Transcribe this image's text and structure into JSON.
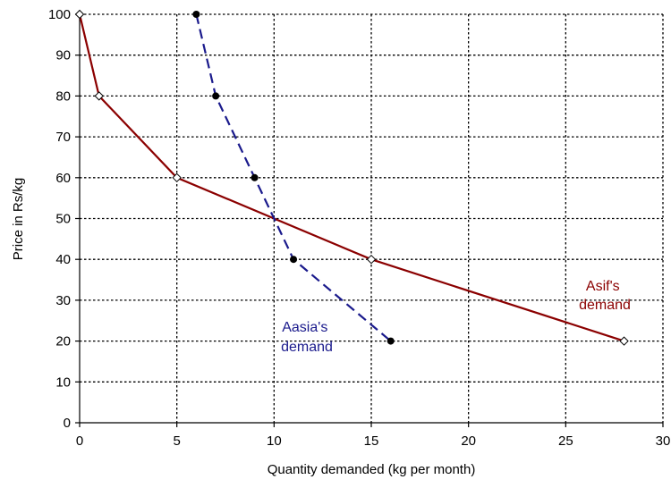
{
  "chart_data": {
    "type": "line",
    "title": "",
    "xlabel": "Quantity demanded (kg per month)",
    "ylabel": "Price in Rs/kg",
    "xlim": [
      0,
      30
    ],
    "ylim": [
      0,
      100
    ],
    "xticks": [
      0,
      5,
      10,
      15,
      20,
      25,
      30
    ],
    "yticks": [
      0,
      10,
      20,
      30,
      40,
      50,
      60,
      70,
      80,
      90,
      100
    ],
    "grid": true,
    "legend": "none",
    "series": [
      {
        "label": "Asif's demand",
        "label_lines": [
          "Asif's",
          "demand"
        ],
        "color": "#8b0000",
        "style": "solid",
        "marker": "diamond-open",
        "x": [
          0,
          1,
          5,
          15,
          28
        ],
        "y": [
          100,
          80,
          60,
          40,
          20
        ]
      },
      {
        "label": "Aasia's demand",
        "label_lines": [
          "Aasia's",
          "demand"
        ],
        "color": "#1a1a8c",
        "style": "dashed",
        "marker": "circle-filled",
        "x": [
          6,
          7,
          9,
          11,
          16
        ],
        "y": [
          100,
          80,
          60,
          40,
          20
        ]
      }
    ]
  }
}
